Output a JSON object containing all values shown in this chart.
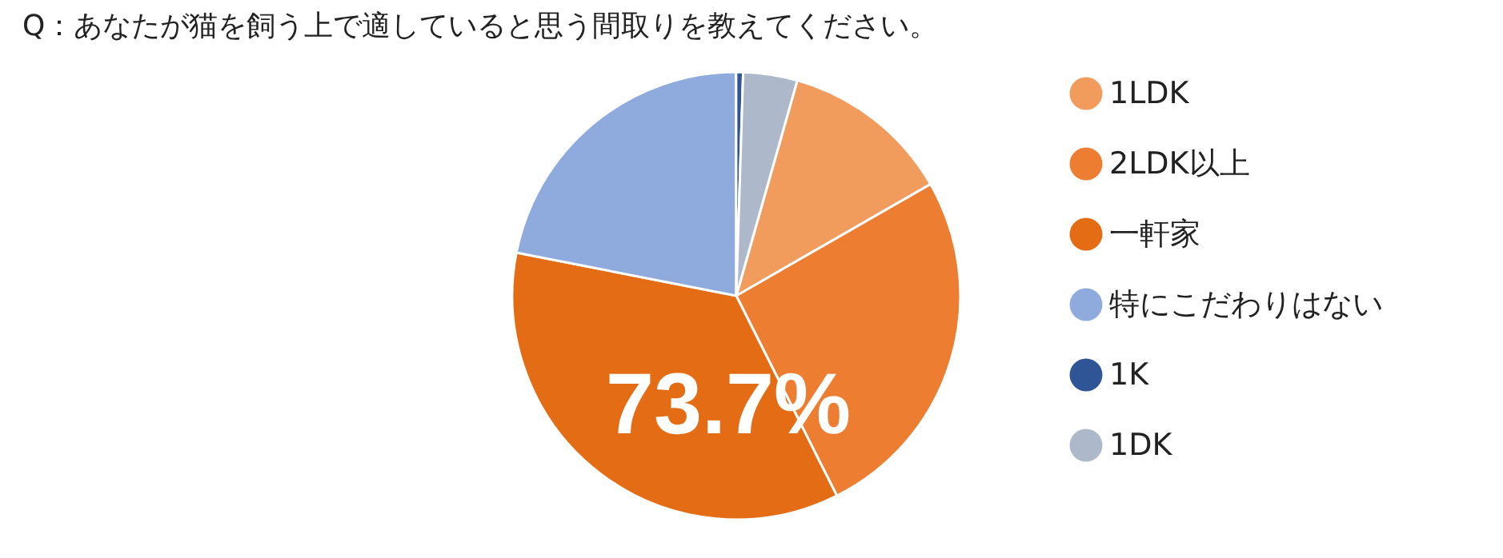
{
  "chart_data": {
    "type": "pie",
    "title": "Q：あなたが猫を飼う上で適していると思う間取りを教えてください。",
    "categories": [
      "1LDK",
      "2LDK以上",
      "一軒家",
      "特にこだわりはない",
      "1K",
      "1DK"
    ],
    "values": [
      12.3,
      25.9,
      35.5,
      21.9,
      0.5,
      3.9
    ],
    "colors": [
      "#f19b5d",
      "#ed7d31",
      "#e46c14",
      "#8faadc",
      "#2f5597",
      "#adb9ca"
    ],
    "annotations": [
      "73.7%"
    ],
    "legend": "right"
  }
}
